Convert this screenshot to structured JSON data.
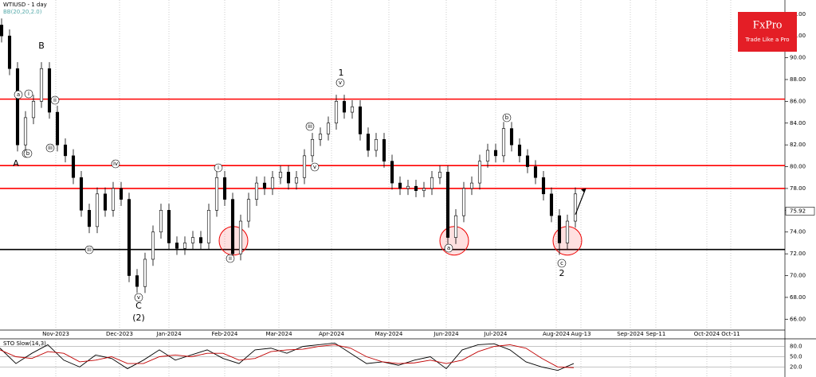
{
  "chart_data": [
    {
      "type": "candlestick",
      "title": "WTIUSD - 1 day",
      "subtitle": "BB(20,20,2.0)",
      "open": [
        93,
        92,
        89,
        82,
        84.5,
        86,
        89,
        85,
        82,
        81,
        79,
        76,
        74.5,
        77.5,
        76,
        78,
        77,
        70,
        69,
        71.5,
        74,
        76,
        73,
        72.5,
        73,
        73.5,
        73,
        76,
        79,
        77,
        72,
        75,
        77,
        78.5,
        78,
        79,
        79.5,
        78.5,
        79,
        81,
        82.5,
        83,
        84,
        86,
        85,
        85.5,
        83,
        81.5,
        82.5,
        80.5,
        78.5,
        78,
        78.2,
        77.8,
        78,
        79,
        79.5,
        73.5,
        75.5,
        78,
        78.5,
        80.5,
        81.5,
        81,
        83.5,
        82,
        81,
        80,
        79,
        77.5,
        75.5,
        73,
        75
      ],
      "high": [
        93.6,
        92.6,
        89.6,
        85.1,
        86.6,
        89.6,
        89.6,
        85.6,
        82.6,
        81.6,
        79.6,
        76.6,
        78.1,
        78.1,
        78.6,
        78.6,
        77.6,
        70.6,
        72.1,
        74.6,
        76.6,
        76.6,
        73.6,
        73.6,
        74.1,
        74.1,
        76.6,
        79.6,
        79.6,
        77.6,
        75.6,
        77.6,
        79.1,
        79.1,
        79.6,
        80.1,
        80.1,
        79.6,
        81.6,
        83.1,
        83.6,
        84.6,
        86.6,
        86.6,
        86.1,
        86.1,
        83.6,
        83.1,
        83.1,
        81.1,
        79.1,
        78.8,
        78.8,
        78.6,
        79.6,
        80.1,
        80.1,
        76.1,
        78.6,
        79.1,
        81.1,
        82.1,
        82.1,
        84.1,
        84.1,
        82.6,
        81.6,
        80.6,
        79.6,
        78.1,
        76.1,
        75.6,
        78.1
      ],
      "low": [
        91.4,
        88.4,
        81.4,
        81.4,
        83.9,
        85.4,
        84.4,
        81.4,
        80.4,
        78.4,
        75.4,
        73.9,
        73.9,
        75.4,
        75.4,
        76.4,
        69.4,
        68.4,
        68.4,
        70.9,
        73.4,
        72.4,
        71.9,
        71.9,
        72.4,
        72.4,
        72.4,
        75.4,
        76.4,
        71.4,
        71.4,
        74.4,
        76.4,
        77.4,
        77.4,
        78.4,
        77.9,
        77.9,
        78.4,
        80.4,
        81.9,
        82.4,
        83.4,
        84.4,
        84.4,
        82.4,
        80.9,
        80.9,
        79.9,
        77.9,
        77.4,
        77.4,
        77.2,
        77.2,
        77.4,
        78.4,
        72.9,
        72.9,
        74.9,
        77.4,
        77.9,
        79.9,
        80.4,
        80.4,
        81.4,
        80.4,
        79.4,
        78.4,
        76.9,
        74.9,
        71.9,
        72.4,
        74.4
      ],
      "close": [
        92,
        89,
        82,
        84.5,
        86,
        89,
        85,
        82,
        81,
        79,
        76,
        74.5,
        77.5,
        76,
        78,
        77,
        70,
        69,
        71.5,
        74,
        76,
        73,
        72.5,
        73,
        73.5,
        73,
        76,
        79,
        77,
        72,
        75,
        77,
        78.5,
        78,
        79,
        79.5,
        78.5,
        79,
        81,
        82.5,
        83,
        84,
        86,
        85,
        85.5,
        83,
        81.5,
        82.5,
        80.5,
        78.5,
        78,
        78.2,
        77.8,
        78,
        79,
        79.5,
        73.5,
        75.5,
        78,
        78.5,
        80.5,
        81.5,
        81,
        83.5,
        82,
        81,
        80,
        79,
        77.5,
        75.5,
        73,
        75,
        77.5
      ],
      "last_price": 75.92,
      "levels": [
        {
          "value": 86.2,
          "color": "#ff0000"
        },
        {
          "value": 80.1,
          "color": "#ff0000"
        },
        {
          "value": 78.0,
          "color": "#ff0000"
        },
        {
          "value": 72.4,
          "color": "#000000"
        }
      ],
      "annotations": [
        "A",
        "B",
        "C",
        "(2)",
        "1",
        "2",
        "a",
        "b",
        "i",
        "ii",
        "iii",
        "iv",
        "v",
        "iii",
        "v",
        "i",
        "ii",
        "iii",
        "iv",
        "v",
        "a",
        "b",
        "c"
      ],
      "xlim": [
        0,
        98.5
      ],
      "ylim": [
        65,
        95.3
      ],
      "xticks": [
        {
          "value": 7,
          "label": "Nov-2023"
        },
        {
          "value": 15,
          "label": "Dec-2023"
        },
        {
          "value": 21.2,
          "label": "Jan-2024"
        },
        {
          "value": 28.2,
          "label": "Feb-2024"
        },
        {
          "value": 35,
          "label": "Mar-2024"
        },
        {
          "value": 41.6,
          "label": "Apr-2024"
        },
        {
          "value": 48.8,
          "label": "May-2024"
        },
        {
          "value": 56,
          "label": "Jun-2024"
        },
        {
          "value": 62.2,
          "label": "Jul-2024"
        },
        {
          "value": 69.8,
          "label": "Aug-2024"
        },
        {
          "value": 72.9,
          "label": "Aug-13"
        },
        {
          "value": 79.1,
          "label": "Sep-2024"
        },
        {
          "value": 82.3,
          "label": "Sep-11"
        },
        {
          "value": 88.7,
          "label": "Oct-2024"
        },
        {
          "value": 91.7,
          "label": "Oct-11"
        }
      ],
      "yticks": [
        {
          "value": 94,
          "label": "94.00"
        },
        {
          "value": 92,
          "label": "92.00"
        },
        {
          "value": 90,
          "label": "90.00"
        },
        {
          "value": 88,
          "label": "88.00"
        },
        {
          "value": 86,
          "label": "86.00"
        },
        {
          "value": 84,
          "label": "84.00"
        },
        {
          "value": 82,
          "label": "82.00"
        },
        {
          "value": 80,
          "label": "80.00"
        },
        {
          "value": 78,
          "label": "78.00"
        },
        {
          "value": 76,
          "label": "76.00"
        },
        {
          "value": 74,
          "label": "74.00"
        },
        {
          "value": 72,
          "label": "72.00"
        },
        {
          "value": 70,
          "label": "70.00"
        },
        {
          "value": 68,
          "label": "68.00"
        },
        {
          "value": 66,
          "label": "66.00"
        }
      ],
      "grid": true,
      "up_color": "#ffffff",
      "down_color": "#000000",
      "brand": {
        "name": "FxPro",
        "slogan": "Trade Like a Pro",
        "color": "#e41e26"
      }
    },
    {
      "type": "line",
      "title": "STO Slow(14,3)",
      "series": [
        {
          "color": "#000000",
          "values": [
            75,
            30,
            60,
            85,
            40,
            20,
            55,
            45,
            15,
            40,
            70,
            40,
            55,
            70,
            45,
            30,
            70,
            75,
            60,
            80,
            85,
            90,
            60,
            30,
            35,
            25,
            40,
            50,
            15,
            70,
            85,
            88,
            70,
            35,
            20,
            10,
            30
          ]
        },
        {
          "color": "#c00000",
          "values": [
            70,
            50,
            45,
            65,
            60,
            35,
            40,
            50,
            30,
            30,
            50,
            55,
            50,
            60,
            60,
            40,
            45,
            65,
            70,
            72,
            80,
            85,
            75,
            50,
            35,
            30,
            32,
            40,
            30,
            40,
            65,
            80,
            85,
            75,
            45,
            20,
            18
          ]
        }
      ],
      "ylim": [
        0,
        100
      ],
      "yticks": [
        {
          "value": 80,
          "label": "80.0"
        },
        {
          "value": 50,
          "label": "50.0"
        },
        {
          "value": 20,
          "label": "20.0"
        }
      ]
    }
  ]
}
